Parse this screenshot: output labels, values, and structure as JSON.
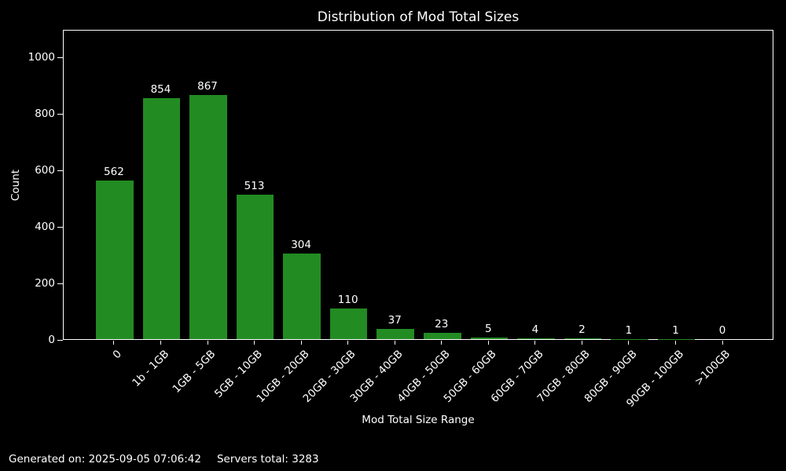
{
  "figure": {
    "background": "#000000",
    "text_color": "#ffffff",
    "spine_color": "#ffffff"
  },
  "chart_data": {
    "type": "bar",
    "title": "Distribution of Mod Total Sizes",
    "xlabel": "Mod Total Size Range",
    "ylabel": "Count",
    "categories": [
      "0",
      "1b - 1GB",
      "1GB - 5GB",
      "5GB - 10GB",
      "10GB - 20GB",
      "20GB - 30GB",
      "30GB - 40GB",
      "40GB - 50GB",
      "50GB - 60GB",
      "60GB - 70GB",
      "70GB - 80GB",
      "80GB - 90GB",
      "90GB - 100GB",
      ">100GB"
    ],
    "values": [
      562,
      854,
      867,
      513,
      304,
      110,
      37,
      23,
      5,
      4,
      2,
      1,
      1,
      0
    ],
    "yticks": [
      0,
      200,
      400,
      600,
      800,
      1000
    ],
    "ylim": [
      0,
      1100
    ],
    "bar_color": "#228B22",
    "grid": "off",
    "legend": "none",
    "value_labels_shown": true
  },
  "footer": {
    "generated_on": "Generated on: 2025-09-05 07:06:42",
    "servers_total": "Servers total: 3283"
  }
}
